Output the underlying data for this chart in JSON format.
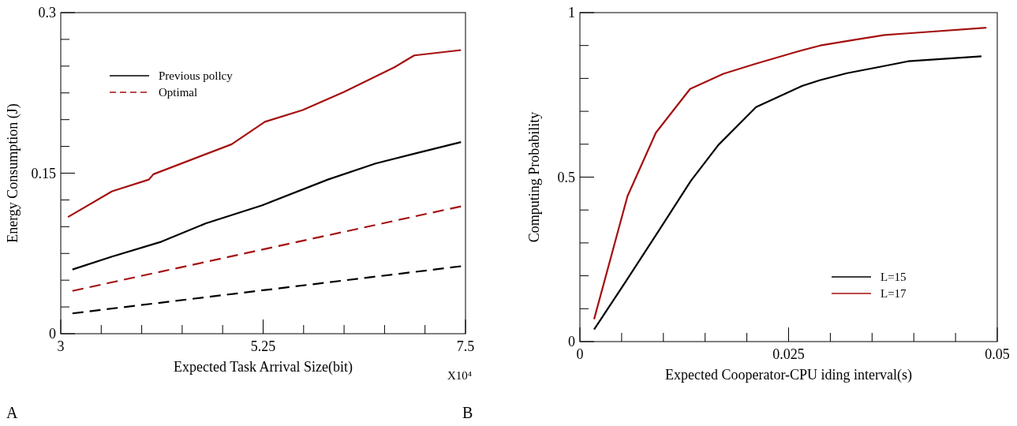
{
  "chart_data": [
    {
      "type": "line",
      "xlabel": "Expected Task Arrival Size(bit)",
      "ylabel": "Energy Consumption (J)",
      "xlim": [
        3,
        7.5
      ],
      "ylim": [
        0,
        0.3
      ],
      "xticks": [
        3,
        {
          "value": 3.45,
          "label": null
        },
        {
          "value": 3.9,
          "label": null
        },
        {
          "value": 4.35,
          "label": null
        },
        {
          "value": 4.8,
          "label": null
        },
        5.25,
        {
          "value": 5.7,
          "label": null
        },
        {
          "value": 6.15,
          "label": null
        },
        {
          "value": 6.6,
          "label": null
        },
        {
          "value": 7.05,
          "label": null
        },
        7.5
      ],
      "yticks": [
        0,
        {
          "value": 0.025,
          "label": null
        },
        {
          "value": 0.05,
          "label": null
        },
        {
          "value": 0.075,
          "label": null
        },
        {
          "value": 0.1,
          "label": null
        },
        {
          "value": 0.125,
          "label": null
        },
        0.15,
        {
          "value": 0.175,
          "label": null
        },
        {
          "value": 0.2,
          "label": null
        },
        {
          "value": 0.225,
          "label": null
        },
        {
          "value": 0.25,
          "label": null
        },
        {
          "value": 0.275,
          "label": null
        },
        0.3
      ],
      "legend": "top left",
      "annotations": [
        "X10⁴",
        "A"
      ],
      "series": [
        {
          "name": "Previous pollcy",
          "color": "#000000",
          "line_style": "solid",
          "x": [
            3.13,
            3.57,
            4.12,
            4.61,
            5.24,
            5.97,
            6.5,
            6.92,
            7.45
          ],
          "values": [
            0.06,
            0.072,
            0.086,
            0.103,
            0.12,
            0.144,
            0.159,
            0.168,
            0.179
          ]
        },
        {
          "name": "Optimal",
          "color": "#a50f0f",
          "line_style": "dashed",
          "x": [
            3.13,
            7.45
          ],
          "values": [
            0.04,
            0.119
          ]
        },
        {
          "color": "#a50f0f",
          "line_style": "solid",
          "x": [
            3.08,
            3.57,
            3.98,
            4.03,
            4.9,
            5.27,
            5.69,
            6.15,
            6.71,
            6.93,
            7.45
          ],
          "values": [
            0.109,
            0.133,
            0.144,
            0.149,
            0.177,
            0.198,
            0.209,
            0.226,
            0.249,
            0.26,
            0.265
          ]
        },
        {
          "color": "#000000",
          "line_style": "dashed",
          "x": [
            3.13,
            7.45
          ],
          "values": [
            0.019,
            0.063
          ]
        }
      ]
    },
    {
      "type": "line",
      "xlabel": "Expected Cooperator-CPU iding interval(s)",
      "ylabel": "Computing Probability",
      "xlim": [
        0,
        0.05
      ],
      "ylim": [
        0,
        1
      ],
      "xticks": [
        0,
        {
          "value": 0.005,
          "label": null
        },
        {
          "value": 0.01,
          "label": null
        },
        {
          "value": 0.015,
          "label": null
        },
        {
          "value": 0.02,
          "label": null
        },
        0.025,
        {
          "value": 0.03,
          "label": null
        },
        {
          "value": 0.035,
          "label": null
        },
        {
          "value": 0.04,
          "label": null
        },
        {
          "value": 0.045,
          "label": null
        },
        0.05
      ],
      "yticks": [
        0,
        {
          "value": 0.1,
          "label": null
        },
        {
          "value": 0.2,
          "label": null
        },
        {
          "value": 0.3,
          "label": null
        },
        {
          "value": 0.4,
          "label": null
        },
        0.5,
        {
          "value": 0.6,
          "label": null
        },
        {
          "value": 0.7,
          "label": null
        },
        {
          "value": 0.8,
          "label": null
        },
        {
          "value": 0.9,
          "label": null
        },
        1
      ],
      "legend": "bottom right",
      "annotations": [
        "B"
      ],
      "series": [
        {
          "name": "L=15",
          "color": "#000000",
          "line_style": "solid",
          "x": [
            0.0017,
            0.0054,
            0.0095,
            0.0133,
            0.0166,
            0.0211,
            0.0265,
            0.0288,
            0.032,
            0.0363,
            0.0393,
            0.0481
          ],
          "values": [
            0.037,
            0.179,
            0.339,
            0.489,
            0.598,
            0.713,
            0.776,
            0.795,
            0.816,
            0.837,
            0.852,
            0.867
          ]
        },
        {
          "name": "L=17",
          "color": "#a50f0f",
          "line_style": "solid",
          "x": [
            0.0017,
            0.0057,
            0.0091,
            0.0132,
            0.0172,
            0.021,
            0.0261,
            0.0288,
            0.0328,
            0.0365,
            0.0393,
            0.0487
          ],
          "values": [
            0.068,
            0.442,
            0.635,
            0.768,
            0.814,
            0.844,
            0.882,
            0.9,
            0.917,
            0.932,
            0.937,
            0.954
          ]
        }
      ]
    }
  ]
}
